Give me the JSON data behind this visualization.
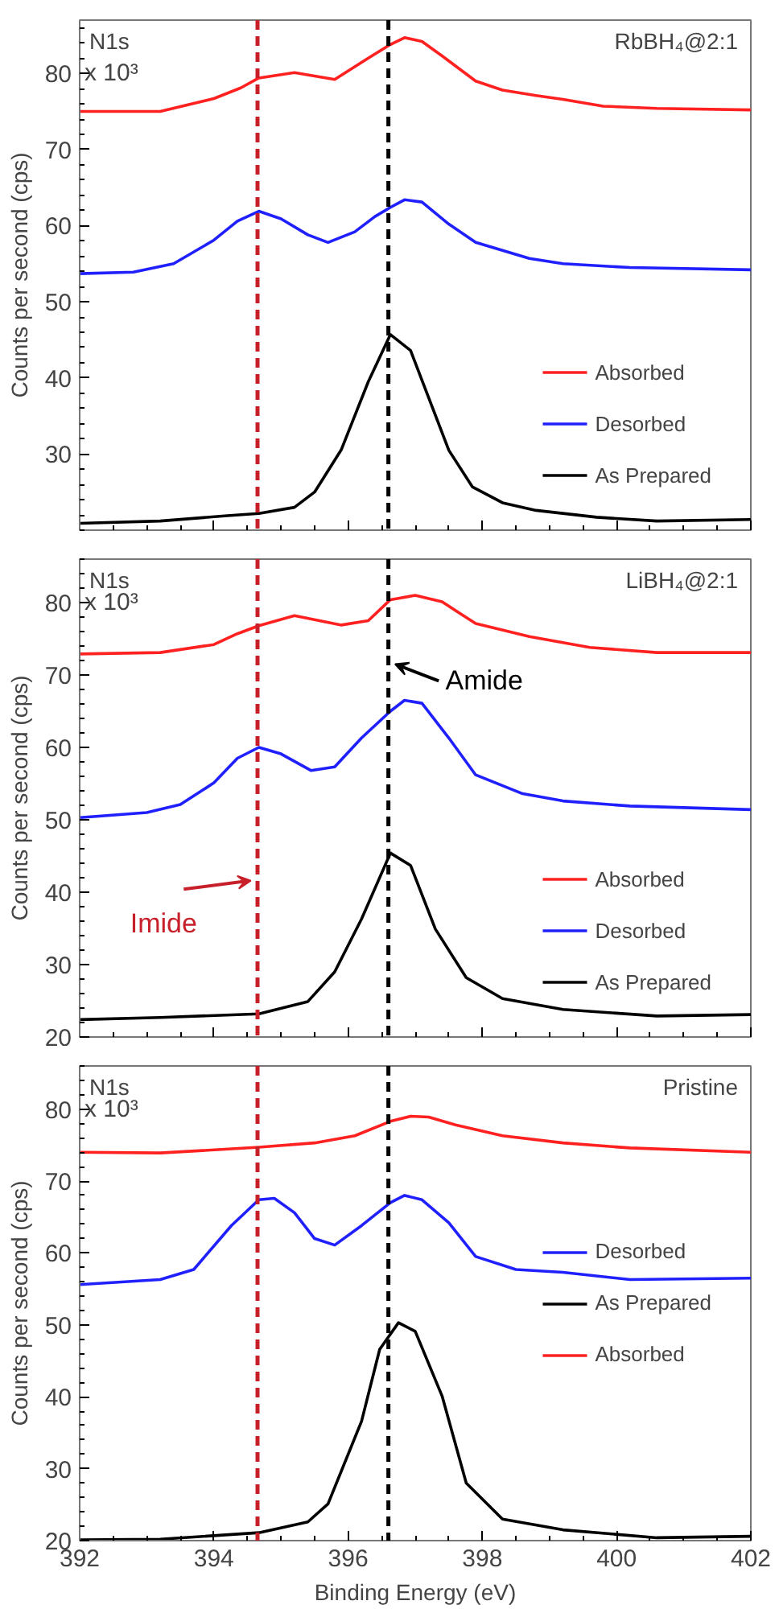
{
  "chart_data": [
    {
      "type": "line",
      "ylabel": "Counts per second (cps)",
      "xlim": [
        392,
        402
      ],
      "ylim": [
        20,
        87
      ],
      "xticks": [
        392,
        394,
        396,
        398,
        400,
        402
      ],
      "yticks": [
        30,
        40,
        50,
        60,
        70,
        80
      ],
      "tick_labels": "y",
      "grid": false,
      "legend": "bottom right",
      "line_style": "solid",
      "marker": "none",
      "annotations": [
        "N1s",
        "RbBH₄@2:1",
        "x 10³"
      ],
      "ref_lines": [
        {
          "axis": "x",
          "value": 394.65,
          "color": "#c8202a",
          "line_style": "dashed"
        },
        {
          "axis": "x",
          "value": 396.6,
          "color": "#000000",
          "line_style": "dashed"
        }
      ],
      "series": [
        {
          "name": "Absorbed",
          "color": "#ff2020",
          "x": [
            392,
            393.2,
            394,
            394.4,
            394.67,
            395.2,
            395.8,
            396.3,
            396.63,
            396.84,
            397.1,
            397.4,
            397.9,
            398.3,
            398.8,
            399.2,
            399.8,
            400.6,
            402
          ],
          "values": [
            75.0,
            75.0,
            76.7,
            78.1,
            79.4,
            80.1,
            79.2,
            82.0,
            83.8,
            84.7,
            84.2,
            82.3,
            79.0,
            77.8,
            77.1,
            76.6,
            75.7,
            75.4,
            75.2
          ]
        },
        {
          "name": "Desorbed",
          "color": "#2020ff",
          "x": [
            392,
            392.8,
            393.4,
            394,
            394.35,
            394.67,
            395,
            395.4,
            395.7,
            396.1,
            396.4,
            396.63,
            396.84,
            397.1,
            397.5,
            397.9,
            398.7,
            399.2,
            400.2,
            402
          ],
          "values": [
            53.7,
            53.9,
            55.0,
            58.1,
            60.6,
            61.9,
            60.9,
            58.8,
            57.8,
            59.2,
            61.2,
            62.4,
            63.4,
            63.1,
            60.2,
            57.8,
            55.7,
            55.0,
            54.5,
            54.2
          ]
        },
        {
          "name": "As Prepared",
          "color": "#000000",
          "x": [
            392,
            393.2,
            394.2,
            394.67,
            395.2,
            395.5,
            395.9,
            396.3,
            396.63,
            396.93,
            397.2,
            397.5,
            397.85,
            398.3,
            398.8,
            399.7,
            400.6,
            402
          ],
          "values": [
            20.9,
            21.2,
            21.9,
            22.2,
            23.0,
            25.0,
            30.6,
            39.5,
            45.7,
            43.6,
            37.4,
            30.5,
            25.7,
            23.6,
            22.6,
            21.7,
            21.2,
            21.4
          ]
        }
      ]
    },
    {
      "type": "line",
      "ylabel": "Counts per second (cps)",
      "xlim": [
        392,
        402
      ],
      "ylim": [
        20,
        86
      ],
      "xticks": [
        392,
        394,
        396,
        398,
        400,
        402
      ],
      "yticks": [
        20,
        30,
        40,
        50,
        60,
        70,
        80
      ],
      "tick_labels": "y",
      "grid": false,
      "legend": "bottom right",
      "line_style": "solid",
      "marker": "none",
      "annotations": [
        "N1s",
        "LiBH₄@2:1",
        "x 10³",
        {
          "text": "Amide",
          "x": 396.7,
          "y": 71.5
        },
        {
          "text": "Imide",
          "x": 394.55,
          "y": 41.6
        }
      ],
      "ref_lines": [
        {
          "axis": "x",
          "value": 394.65,
          "color": "#c8202a",
          "line_style": "dashed"
        },
        {
          "axis": "x",
          "value": 396.6,
          "color": "#000000",
          "line_style": "dashed"
        }
      ],
      "series": [
        {
          "name": "Absorbed",
          "color": "#ff2020",
          "x": [
            392,
            393.2,
            394,
            394.35,
            394.67,
            395.2,
            395.9,
            396.3,
            396.63,
            397,
            397.4,
            397.9,
            398.7,
            399.6,
            400.6,
            402
          ],
          "values": [
            72.9,
            73.1,
            74.2,
            75.7,
            76.8,
            78.2,
            76.9,
            77.5,
            80.4,
            81.0,
            80.1,
            77.1,
            75.3,
            73.8,
            73.1,
            73.1
          ]
        },
        {
          "name": "Desorbed",
          "color": "#2020ff",
          "x": [
            392,
            393,
            393.5,
            394,
            394.35,
            394.67,
            395,
            395.45,
            395.8,
            396.2,
            396.63,
            396.84,
            397.1,
            397.5,
            397.9,
            398.6,
            399.2,
            400.2,
            402
          ],
          "values": [
            50.3,
            51.0,
            52.1,
            55.1,
            58.5,
            60.0,
            59.1,
            56.8,
            57.3,
            61.3,
            65.0,
            66.5,
            66.1,
            61.3,
            56.2,
            53.6,
            52.6,
            51.9,
            51.4
          ]
        },
        {
          "name": "As Prepared",
          "color": "#000000",
          "x": [
            392,
            393.2,
            394.67,
            395.4,
            395.8,
            396.2,
            396.63,
            396.93,
            397.3,
            397.76,
            398.3,
            399.2,
            400.6,
            402
          ],
          "values": [
            22.4,
            22.7,
            23.2,
            24.9,
            29.0,
            36.3,
            45.4,
            43.7,
            34.9,
            28.2,
            25.3,
            23.8,
            22.9,
            23.1
          ]
        }
      ]
    },
    {
      "type": "line",
      "xlabel": "Binding Energy (eV)",
      "ylabel": "Counts per second (cps)",
      "xlim": [
        392,
        402
      ],
      "ylim": [
        20,
        86
      ],
      "xticks": [
        392,
        394,
        396,
        398,
        400,
        402
      ],
      "yticks": [
        20,
        30,
        40,
        50,
        60,
        70,
        80
      ],
      "grid": false,
      "legend": "right",
      "line_style": "solid",
      "marker": "none",
      "annotations": [
        "N1s",
        "Pristine",
        "x 10³"
      ],
      "ref_lines": [
        {
          "axis": "x",
          "value": 394.65,
          "color": "#c8202a",
          "line_style": "dashed"
        },
        {
          "axis": "x",
          "value": 396.6,
          "color": "#000000",
          "line_style": "dashed"
        }
      ],
      "series": [
        {
          "name": "Desorbed",
          "color": "#2020ff",
          "x": [
            392,
            393.2,
            393.7,
            394.26,
            394.67,
            394.9,
            395.2,
            395.5,
            395.8,
            396.2,
            396.63,
            396.84,
            397.1,
            397.5,
            397.9,
            398.5,
            399.2,
            400.2,
            402
          ],
          "values": [
            55.6,
            56.3,
            57.7,
            63.8,
            67.4,
            67.6,
            65.6,
            62.0,
            61.1,
            63.8,
            67.0,
            68.0,
            67.4,
            64.2,
            59.5,
            57.7,
            57.3,
            56.3,
            56.5
          ]
        },
        {
          "name": "As Prepared",
          "color": "#000000",
          "x": [
            392,
            393.2,
            394.67,
            395.4,
            395.7,
            396.2,
            396.47,
            396.75,
            397.0,
            397.4,
            397.76,
            398.3,
            399.2,
            400.6,
            402
          ],
          "values": [
            20.1,
            20.2,
            21.1,
            22.6,
            25.1,
            36.6,
            46.6,
            50.3,
            49.1,
            40.1,
            28.0,
            23.0,
            21.5,
            20.4,
            20.6
          ]
        },
        {
          "name": "Absorbed",
          "color": "#ff2020",
          "x": [
            392,
            393.2,
            394.67,
            395.5,
            396.1,
            396.63,
            396.93,
            397.2,
            397.6,
            398.3,
            399.2,
            400.2,
            402
          ],
          "values": [
            74.0,
            73.9,
            74.7,
            75.3,
            76.3,
            78.3,
            79.0,
            78.9,
            77.8,
            76.3,
            75.3,
            74.6,
            74.0
          ]
        }
      ]
    }
  ]
}
